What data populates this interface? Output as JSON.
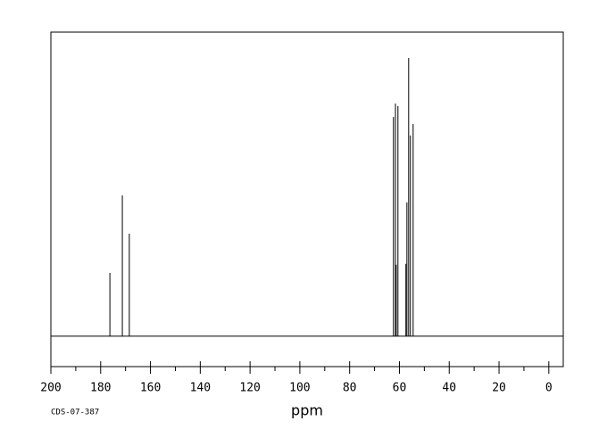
{
  "chart_data": {
    "type": "spectrum",
    "x_label": "ppm",
    "footnote": "CDS-07-387",
    "x": [
      176.3,
      171.3,
      168.5,
      62.4,
      61.6,
      61.3,
      60.6,
      57.4,
      57.0,
      56.3,
      55.6,
      54.5
    ],
    "values": [
      20.8,
      46.3,
      33.7,
      72.1,
      76.5,
      23.5,
      75.7,
      23.8,
      44.0,
      91.5,
      66.0,
      69.8
    ],
    "color": "#000000",
    "xlim": [
      200,
      -5.8
    ],
    "ylim": [
      -10,
      100
    ],
    "xticks": [
      200,
      180,
      160,
      140,
      120,
      100,
      80,
      60,
      40,
      20,
      0
    ],
    "xminorticks": [
      190,
      170,
      150,
      130,
      110,
      90,
      70,
      50,
      30,
      10
    ]
  }
}
